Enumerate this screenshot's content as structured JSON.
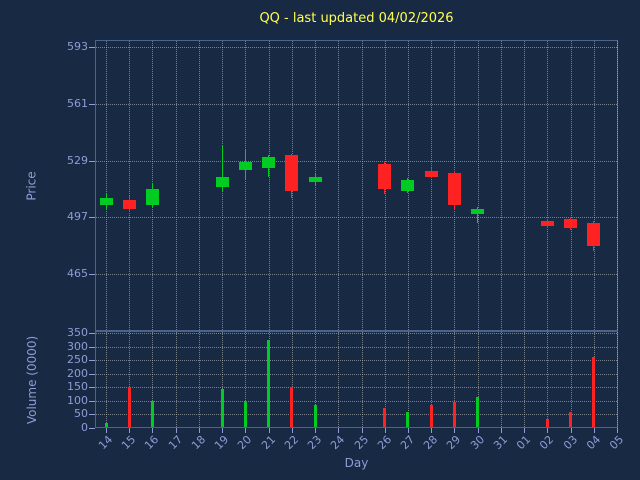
{
  "chart_data": {
    "type": "candlestick",
    "title": "QQ - last updated 04/02/2026",
    "xlabel": "Day",
    "ylabel_price": "Price",
    "ylabel_volume": "Volume (0000)",
    "grid": true,
    "legend": null,
    "x_ticks": [
      "14",
      "15",
      "16",
      "17",
      "18",
      "19",
      "20",
      "21",
      "22",
      "23",
      "24",
      "25",
      "26",
      "27",
      "28",
      "29",
      "30",
      "31",
      "01",
      "02",
      "03",
      "04",
      "05"
    ],
    "price_ticks": [
      465,
      497,
      529,
      561,
      593
    ],
    "price_axis_range": [
      433,
      597
    ],
    "volume_ticks": [
      0,
      50,
      100,
      150,
      200,
      250,
      300,
      350
    ],
    "volume_axis_range": [
      0,
      350
    ],
    "candles": [
      {
        "day": "14",
        "open": 504,
        "high": 510,
        "low": 502,
        "close": 508,
        "volume": 20
      },
      {
        "day": "15",
        "open": 507,
        "high": 509,
        "low": 500,
        "close": 502,
        "volume": 150
      },
      {
        "day": "16",
        "open": 504,
        "high": 516,
        "low": 503,
        "close": 513,
        "volume": 100
      },
      {
        "day": "19",
        "open": 514,
        "high": 538,
        "low": 512,
        "close": 520,
        "volume": 145
      },
      {
        "day": "20",
        "open": 524,
        "high": 535,
        "low": 518,
        "close": 528,
        "volume": 100
      },
      {
        "day": "21",
        "open": 525,
        "high": 532,
        "low": 520,
        "close": 531,
        "volume": 325
      },
      {
        "day": "22",
        "open": 532,
        "high": 533,
        "low": 508,
        "close": 512,
        "volume": 150
      },
      {
        "day": "23",
        "open": 517,
        "high": 522,
        "low": 515,
        "close": 520,
        "volume": 85
      },
      {
        "day": "26",
        "open": 527,
        "high": 529,
        "low": 510,
        "close": 513,
        "volume": 75
      },
      {
        "day": "27",
        "open": 512,
        "high": 519,
        "low": 511,
        "close": 518,
        "volume": 60
      },
      {
        "day": "28",
        "open": 523,
        "high": 525,
        "low": 519,
        "close": 520,
        "volume": 85
      },
      {
        "day": "29",
        "open": 522,
        "high": 523,
        "low": 501,
        "close": 504,
        "volume": 95
      },
      {
        "day": "30",
        "open": 499,
        "high": 503,
        "low": 494,
        "close": 502,
        "volume": 115
      },
      {
        "day": "02",
        "open": 495,
        "high": 496,
        "low": 491,
        "close": 492,
        "volume": 35
      },
      {
        "day": "03",
        "open": 496,
        "high": 497,
        "low": 490,
        "close": 491,
        "volume": 60
      },
      {
        "day": "04",
        "open": 494,
        "high": 495,
        "low": 478,
        "close": 481,
        "volume": 260
      }
    ]
  },
  "colors": {
    "background": "#182944",
    "text": "#8f9cd6",
    "title": "#ffff4d",
    "up": "#00cc22",
    "down": "#ff2222",
    "grid": "#c8c8c8",
    "frame": "#4a648c"
  }
}
